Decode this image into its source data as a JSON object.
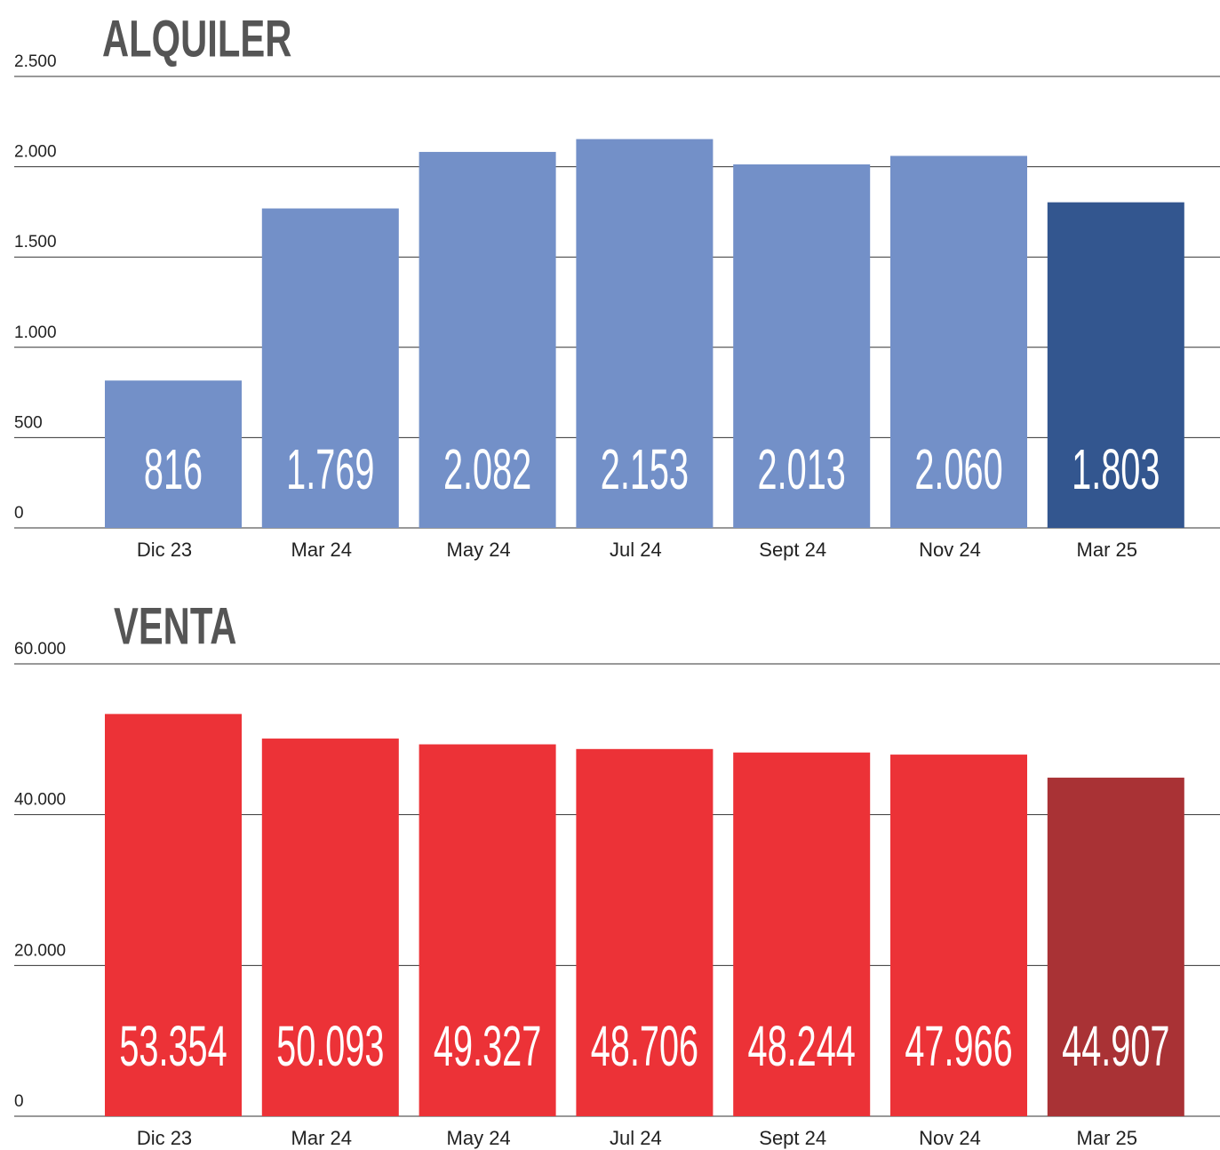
{
  "chart_data": [
    {
      "type": "bar",
      "title": "ALQUILER",
      "categories": [
        "Dic 23",
        "Mar 24",
        "May 24",
        "Jul 24",
        "Sept 24",
        "Nov 24",
        "Mar 25"
      ],
      "values": [
        816,
        1769,
        2082,
        2153,
        2013,
        2060,
        1803
      ],
      "value_labels": [
        "816",
        "1.769",
        "2.082",
        "2.153",
        "2.013",
        "2.060",
        "1.803"
      ],
      "colors": [
        "#7390c8",
        "#7390c8",
        "#7390c8",
        "#7390c8",
        "#7390c8",
        "#7390c8",
        "#33568f"
      ],
      "ylim": [
        0,
        2500
      ],
      "yticks": [
        0,
        500,
        {
          "value": 1000,
          "label": "1.000"
        },
        {
          "value": 1500,
          "label": "1.500"
        },
        {
          "value": 2000,
          "label": "2.000"
        },
        {
          "value": 2500,
          "label": "2.500"
        }
      ],
      "grid": true
    },
    {
      "type": "bar",
      "title": "VENTA",
      "categories": [
        "Dic 23",
        "Mar 24",
        "May 24",
        "Jul 24",
        "Sept 24",
        "Nov 24",
        "Mar 25"
      ],
      "values": [
        53354,
        50093,
        49327,
        48706,
        48244,
        47966,
        44907
      ],
      "value_labels": [
        "53.354",
        "50.093",
        "49.327",
        "48.706",
        "48.244",
        "47.966",
        "44.907"
      ],
      "colors": [
        "#ec3237",
        "#ec3237",
        "#ec3237",
        "#ec3237",
        "#ec3237",
        "#ec3237",
        "#a93235"
      ],
      "ylim": [
        0,
        60000
      ],
      "yticks": [
        0,
        {
          "value": 20000,
          "label": "20.000"
        },
        {
          "value": 40000,
          "label": "40.000"
        },
        {
          "value": 60000,
          "label": "60.000"
        }
      ],
      "grid": true
    }
  ]
}
